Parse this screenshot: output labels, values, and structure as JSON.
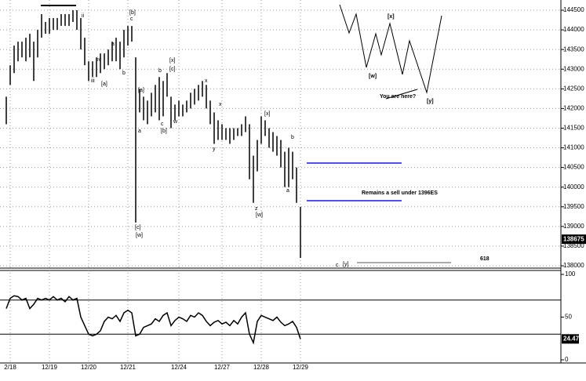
{
  "chart_data": [
    {
      "type": "ohlc",
      "categories": [
        null,
        "2/18",
        null,
        null,
        null,
        null,
        null,
        null,
        null,
        null,
        null,
        "12/19",
        null,
        null,
        null,
        null,
        null,
        null,
        null,
        null,
        null,
        "12/20",
        null,
        null,
        null,
        null,
        null,
        null,
        null,
        null,
        null,
        "12/21",
        null,
        null,
        null,
        null,
        null,
        null,
        null,
        null,
        null,
        null,
        null,
        null,
        "12/24",
        null,
        null,
        null,
        null,
        null,
        null,
        null,
        null,
        null,
        null,
        "12/27",
        null,
        null,
        null,
        null,
        null,
        null,
        null,
        null,
        null,
        "12/28",
        null,
        null,
        null,
        null,
        null,
        null,
        null,
        null,
        null,
        "12/29"
      ],
      "high": [
        142300,
        143100,
        143600,
        143700,
        143700,
        143800,
        143900,
        143700,
        144000,
        144400,
        144200,
        144300,
        144300,
        144300,
        144400,
        144400,
        144400,
        144500,
        144500,
        144300,
        143800,
        143200,
        143200,
        143300,
        143400,
        143400,
        143500,
        143700,
        143800,
        143700,
        144000,
        144100,
        144100,
        143300,
        142500,
        142300,
        142200,
        142400,
        142600,
        142800,
        142700,
        142900,
        142300,
        142100,
        142200,
        142100,
        142200,
        142400,
        142500,
        142600,
        142700,
        142600,
        142200,
        141900,
        141700,
        141600,
        141500,
        141500,
        141500,
        141500,
        141600,
        141800,
        141600,
        140800,
        141200,
        141800,
        141700,
        141500,
        141400,
        141300,
        141200,
        140900,
        141000,
        140900,
        140500,
        139500
      ],
      "low": [
        141600,
        142600,
        142900,
        143200,
        143300,
        143200,
        143300,
        142700,
        143300,
        143800,
        143900,
        143900,
        144000,
        144000,
        144100,
        144100,
        144100,
        144200,
        144000,
        143500,
        143100,
        142700,
        142800,
        142800,
        142900,
        143000,
        143100,
        143200,
        143200,
        143000,
        143300,
        143600,
        143700,
        139100,
        141900,
        141700,
        141600,
        141800,
        141900,
        141700,
        141800,
        142300,
        141500,
        141700,
        141800,
        141800,
        141900,
        142000,
        142100,
        142200,
        142300,
        142000,
        141600,
        141100,
        141200,
        141200,
        141200,
        141100,
        141200,
        141300,
        141300,
        141400,
        140200,
        139600,
        140400,
        141100,
        141300,
        141000,
        140900,
        140800,
        140500,
        140000,
        140000,
        140200,
        139600,
        138200
      ],
      "last": 138675,
      "color": "#000000",
      "ylim": [
        138000,
        144500
      ],
      "yticks": [
        138000,
        138500,
        139000,
        139500,
        140000,
        140500,
        141000,
        141500,
        142000,
        142500,
        143000,
        143500,
        144000,
        144500
      ],
      "grid": true,
      "annotations": [
        "[b]",
        "c",
        "ii",
        "a",
        "iv",
        "iii",
        "[a]",
        "b",
        "[x]",
        "[c]",
        "b",
        "[a]",
        "c",
        "[b]",
        "a",
        "w",
        "x",
        "x",
        "y",
        "[x]",
        "b",
        "a",
        "z",
        "[w]",
        "[c]",
        "[w]",
        "c",
        "[y]",
        "618",
        "Remains a sell under 1396ES",
        "You are here?",
        "[x]",
        "[w]",
        "[y]"
      ]
    },
    {
      "type": "line",
      "values": [
        60,
        72,
        75,
        74,
        70,
        72,
        60,
        65,
        72,
        70,
        72,
        70,
        74,
        70,
        72,
        68,
        74,
        70,
        72,
        50,
        40,
        30,
        28,
        30,
        34,
        45,
        50,
        48,
        52,
        45,
        55,
        58,
        55,
        28,
        30,
        38,
        40,
        42,
        48,
        45,
        52,
        55,
        40,
        46,
        50,
        48,
        45,
        52,
        50,
        55,
        52,
        45,
        40,
        44,
        46,
        42,
        44,
        40,
        46,
        42,
        50,
        55,
        30,
        20,
        45,
        52,
        50,
        48,
        46,
        50,
        44,
        40,
        42,
        45,
        38,
        24.47
      ],
      "color": "#000000",
      "ylim": [
        0,
        100
      ],
      "yticks": [
        0,
        50,
        100
      ],
      "levels": [
        70,
        30
      ]
    }
  ]
}
